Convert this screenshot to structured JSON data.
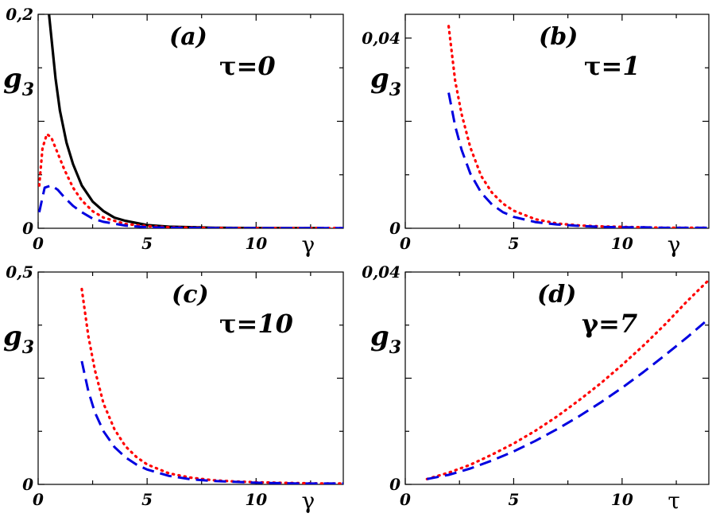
{
  "chart_data": [
    {
      "type": "line",
      "panel": "(a)",
      "annotation": {
        "symbol": "τ",
        "value": "=0"
      },
      "ylabel": "g",
      "ylabel_sub": "3",
      "xlabel": "γ",
      "xlim": [
        0,
        14
      ],
      "ylim": [
        0,
        0.2
      ],
      "xticks": [
        0,
        5,
        10
      ],
      "xtick_labels": [
        "0",
        "5",
        "10"
      ],
      "yticks": [
        0,
        0.2
      ],
      "ytick_labels": [
        "0",
        "0,2"
      ],
      "series": [
        {
          "name": "black-solid",
          "color": "#000000",
          "style": "solid",
          "x": [
            0.5,
            0.8,
            1.0,
            1.3,
            1.6,
            2.0,
            2.5,
            3.0,
            3.5,
            4.0,
            5.0,
            6.0,
            8.0,
            10.0,
            12.0,
            13.0
          ],
          "y": [
            0.2,
            0.14,
            0.11,
            0.08,
            0.06,
            0.04,
            0.025,
            0.016,
            0.01,
            0.007,
            0.003,
            0.0015,
            0.0005,
            0.0002,
            0.0001,
            0.0001
          ]
        },
        {
          "name": "red-dotted",
          "color": "#ff0000",
          "style": "dotted",
          "x": [
            0.05,
            0.2,
            0.4,
            0.6,
            0.9,
            1.2,
            1.6,
            2.0,
            2.5,
            3.0,
            4.0,
            5.0,
            6.0,
            8.0,
            10.0,
            12.0,
            13.0,
            14.0
          ],
          "y": [
            0.04,
            0.075,
            0.088,
            0.085,
            0.07,
            0.055,
            0.038,
            0.026,
            0.016,
            0.01,
            0.004,
            0.002,
            0.001,
            0.0003,
            0.0001,
            0.0001,
            0.0002,
            0.0002
          ]
        },
        {
          "name": "blue-dashed",
          "color": "#0000e0",
          "style": "dashed",
          "x": [
            0.05,
            0.3,
            0.6,
            0.9,
            1.2,
            1.6,
            2.0,
            2.5,
            3.0,
            4.0,
            5.0,
            6.0,
            8.0,
            10.0,
            12.0,
            13.0,
            14.0
          ],
          "y": [
            0.015,
            0.038,
            0.04,
            0.036,
            0.029,
            0.021,
            0.015,
            0.009,
            0.006,
            0.0025,
            0.001,
            0.0005,
            0.0002,
            0.0001,
            0.0001,
            0.0002,
            0.0002
          ]
        }
      ]
    },
    {
      "type": "line",
      "panel": "(b)",
      "annotation": {
        "symbol": "τ",
        "value": "=1"
      },
      "ylabel": "g",
      "ylabel_sub": "3",
      "xlabel": "γ",
      "xlim": [
        0,
        14
      ],
      "ylim": [
        0,
        0.045
      ],
      "xticks": [
        0,
        5,
        10
      ],
      "xtick_labels": [
        "0",
        "5",
        "10"
      ],
      "yticks": [
        0,
        0.04
      ],
      "ytick_labels": [
        "0",
        "0,04"
      ],
      "series": [
        {
          "name": "red-dotted",
          "color": "#ff0000",
          "style": "dotted",
          "x": [
            2.0,
            2.3,
            2.6,
            3.0,
            3.5,
            4.0,
            4.5,
            5.0,
            6.0,
            7.0,
            8.0,
            9.0,
            10.0,
            11.0,
            12.0,
            13.0,
            14.0
          ],
          "y": [
            0.0425,
            0.031,
            0.024,
            0.017,
            0.011,
            0.0075,
            0.0052,
            0.0037,
            0.0019,
            0.001,
            0.0006,
            0.0004,
            0.0003,
            0.0002,
            0.0001,
            0.0001,
            0.0001
          ]
        },
        {
          "name": "blue-dashed",
          "color": "#0000e0",
          "style": "dashed",
          "x": [
            2.0,
            2.3,
            2.6,
            3.0,
            3.5,
            4.0,
            4.5,
            5.0,
            6.0,
            7.0,
            8.0,
            9.0,
            10.0,
            11.0,
            12.0,
            13.0,
            14.0
          ],
          "y": [
            0.0285,
            0.0215,
            0.0165,
            0.0115,
            0.0075,
            0.005,
            0.0034,
            0.0024,
            0.0013,
            0.0008,
            0.0005,
            0.0003,
            0.0002,
            0.0002,
            0.0001,
            0.0001,
            0.0001
          ]
        }
      ]
    },
    {
      "type": "line",
      "panel": "(c)",
      "annotation": {
        "symbol": "τ",
        "value": "=10"
      },
      "ylabel": "g",
      "ylabel_sub": "3",
      "xlabel": "γ",
      "xlim": [
        0,
        14
      ],
      "ylim": [
        0,
        0.5
      ],
      "xticks": [
        0,
        5,
        10
      ],
      "xtick_labels": [
        "0",
        "5",
        "10"
      ],
      "yticks": [
        0,
        0.5
      ],
      "ytick_labels": [
        "0",
        "0,5"
      ],
      "series": [
        {
          "name": "red-dotted",
          "color": "#ff0000",
          "style": "dotted",
          "x": [
            2.0,
            2.3,
            2.6,
            3.0,
            3.5,
            4.0,
            4.5,
            5.0,
            6.0,
            7.0,
            8.0,
            9.0,
            10.0,
            11.0,
            12.0,
            13.0,
            14.0
          ],
          "y": [
            0.46,
            0.35,
            0.27,
            0.19,
            0.13,
            0.09,
            0.065,
            0.047,
            0.026,
            0.016,
            0.01,
            0.007,
            0.005,
            0.004,
            0.003,
            0.002,
            0.002
          ]
        },
        {
          "name": "blue-dashed",
          "color": "#0000e0",
          "style": "dashed",
          "x": [
            2.0,
            2.3,
            2.6,
            3.0,
            3.5,
            4.0,
            4.5,
            5.0,
            6.0,
            7.0,
            8.0,
            9.0,
            10.0,
            11.0,
            12.0,
            13.0,
            14.0
          ],
          "y": [
            0.29,
            0.22,
            0.17,
            0.125,
            0.088,
            0.064,
            0.047,
            0.035,
            0.02,
            0.012,
            0.008,
            0.006,
            0.004,
            0.003,
            0.002,
            0.002,
            0.002
          ]
        }
      ]
    },
    {
      "type": "line",
      "panel": "(d)",
      "annotation": {
        "symbol": "γ",
        "value": "=7"
      },
      "ylabel": "g",
      "ylabel_sub": "3",
      "xlabel": "τ",
      "xlim": [
        0,
        14
      ],
      "ylim": [
        0,
        0.04
      ],
      "xticks": [
        0,
        5,
        10
      ],
      "xtick_labels": [
        "0",
        "5",
        "10"
      ],
      "yticks": [
        0,
        0.04
      ],
      "ytick_labels": [
        "0",
        "0,04"
      ],
      "series": [
        {
          "name": "red-dotted",
          "color": "#ff0000",
          "style": "dotted",
          "x": [
            1,
            2,
            3,
            4,
            5,
            6,
            7,
            8,
            9,
            10,
            11,
            12,
            13,
            14
          ],
          "y": [
            0.001,
            0.0022,
            0.0037,
            0.0056,
            0.0077,
            0.0101,
            0.0128,
            0.0158,
            0.019,
            0.0225,
            0.0262,
            0.0302,
            0.0345,
            0.0385
          ]
        },
        {
          "name": "blue-dashed",
          "color": "#0000e0",
          "style": "dashed",
          "x": [
            1,
            2,
            3,
            4,
            5,
            6,
            7,
            8,
            9,
            10,
            11,
            12,
            13,
            14
          ],
          "y": [
            0.001,
            0.0018,
            0.003,
            0.0045,
            0.0062,
            0.0082,
            0.0104,
            0.0128,
            0.0154,
            0.0182,
            0.0212,
            0.0244,
            0.0277,
            0.0312
          ]
        }
      ]
    }
  ]
}
